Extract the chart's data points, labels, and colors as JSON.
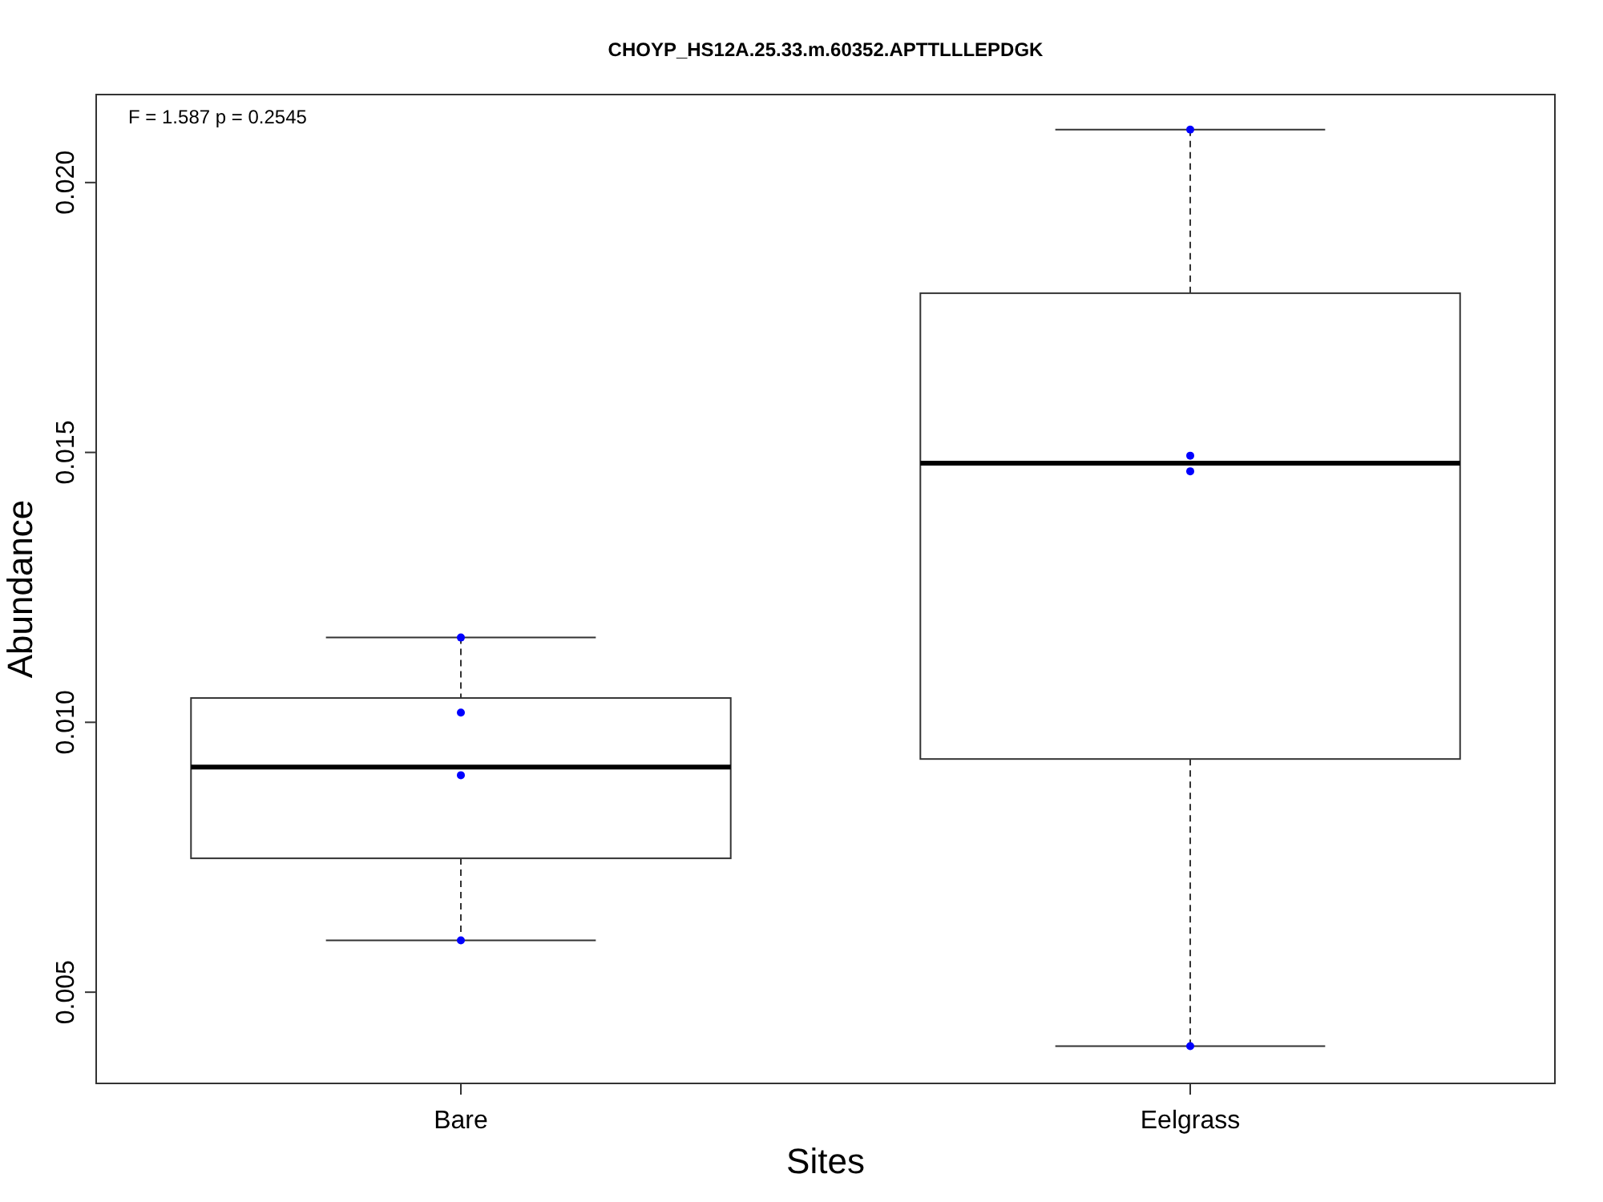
{
  "chart_data": {
    "type": "box",
    "title": "CHOYP_HS12A.25.33.m.60352.APTTLLLEPDGK",
    "xlabel": "Sites",
    "ylabel": "Abundance",
    "categories": [
      "Bare",
      "Eelgrass"
    ],
    "boxes": [
      {
        "low": 0.00596,
        "q1": 0.00748,
        "median": 0.00917,
        "q3": 0.01045,
        "high": 0.01157
      },
      {
        "low": 0.004,
        "q1": 0.00932,
        "median": 0.0148,
        "q3": 0.01795,
        "high": 0.02098
      }
    ],
    "series": [
      {
        "type": "scatter",
        "color": "#0000ff",
        "x": [
          "Bare",
          "Bare",
          "Bare",
          "Bare",
          "Eelgrass",
          "Eelgrass",
          "Eelgrass",
          "Eelgrass"
        ],
        "values": [
          0.01157,
          0.01018,
          0.00902,
          0.00596,
          0.02098,
          0.01494,
          0.01465,
          0.004
        ]
      }
    ],
    "ylim": [
      0.00331,
      0.02163
    ],
    "yticks": [
      {
        "value": 0.005,
        "label": "0.005"
      },
      {
        "value": 0.01,
        "label": "0.010"
      },
      {
        "value": 0.015,
        "label": "0.015"
      },
      {
        "value": 0.02,
        "label": "0.020"
      }
    ],
    "annotations": [
      "F = 1.587 p = 0.2545"
    ],
    "grid": false
  }
}
